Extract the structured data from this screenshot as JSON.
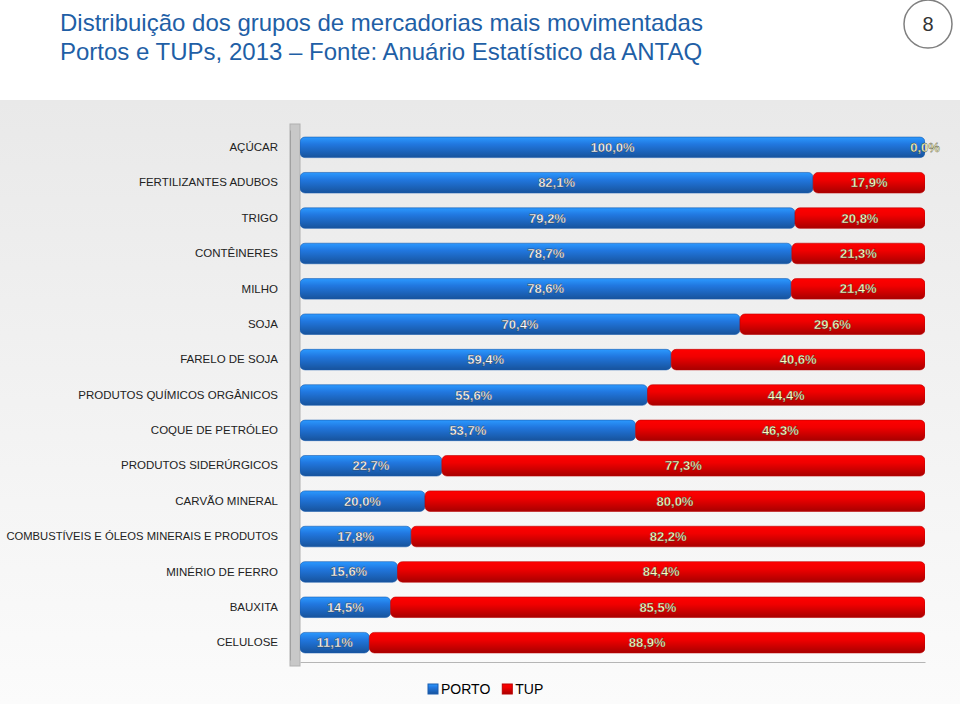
{
  "chart_data": {
    "type": "bar",
    "orientation": "horizontal",
    "stacked": true,
    "data_labels": true,
    "tick_labels": "y",
    "grid": false,
    "legend": "bottom",
    "title": "Distribuição dos grupos de mercadorias mais movimentadas",
    "subtitle": "Portos e TUPs, 2013 – Fonte: Anuário Estatístico da ANTAQ",
    "annotations": [
      "8"
    ],
    "xlim": [
      0,
      100
    ],
    "categories": [
      "AÇÚCAR",
      "FERTILIZANTES ADUBOS",
      "TRIGO",
      "CONTÊINERES",
      "MILHO",
      "SOJA",
      "FARELO DE SOJA",
      "PRODUTOS QUÍMICOS ORGÂNICOS",
      "COQUE DE PETRÓLEO",
      "PRODUTOS SIDERÚRGICOS",
      "CARVÃO MINERAL",
      "COMBUSTÍVEIS E ÓLEOS MINERAIS E PRODUTOS",
      "MINÉRIO DE FERRO",
      "BAUXITA",
      "CELULOSE"
    ],
    "series": [
      {
        "name": "PORTO",
        "color": "#1f6fd0",
        "values": [
          100.0,
          82.1,
          79.2,
          78.7,
          78.6,
          70.4,
          59.4,
          55.6,
          53.7,
          22.7,
          20.0,
          17.8,
          15.6,
          14.5,
          11.1
        ],
        "value_labels": [
          "100,0%",
          "82,1%",
          "79,2%",
          "78,7%",
          "78,6%",
          "70,4%",
          "59,4%",
          "55,6%",
          "53,7%",
          "22,7%",
          "20,0%",
          "17,8%",
          "15,6%",
          "14,5%",
          "11,1%"
        ]
      },
      {
        "name": "TUP",
        "color": "#e00000",
        "values": [
          0.0,
          17.9,
          20.8,
          21.3,
          21.4,
          29.6,
          40.6,
          44.4,
          46.3,
          77.3,
          80.0,
          82.2,
          84.4,
          85.5,
          88.9
        ],
        "value_labels": [
          "0,0%",
          "17,9%",
          "20,8%",
          "21,3%",
          "21,4%",
          "29,6%",
          "40,6%",
          "44,4%",
          "46,3%",
          "77,3%",
          "80,0%",
          "82,2%",
          "84,4%",
          "85,5%",
          "88,9%"
        ]
      }
    ]
  }
}
